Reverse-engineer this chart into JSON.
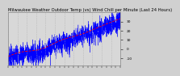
{
  "title": "Milwaukee Weather Outdoor Temp (vs) Wind Chill per Minute (Last 24 Hours)",
  "bg_color": "#d0d0d0",
  "plot_bg_color": "#d8d8d8",
  "text_color": "#000000",
  "grid_color": "#aaaaaa",
  "line1_color": "#0000ff",
  "line2_color": "#ff0000",
  "n_points": 1440,
  "y_start": -8,
  "y_end": 33,
  "noise_scale": 4.0,
  "wind_extra_noise": 5.0,
  "title_fontsize": 3.8,
  "tick_fontsize": 3.2,
  "ylim": [
    -18,
    40
  ],
  "xlim": [
    0,
    1440
  ]
}
